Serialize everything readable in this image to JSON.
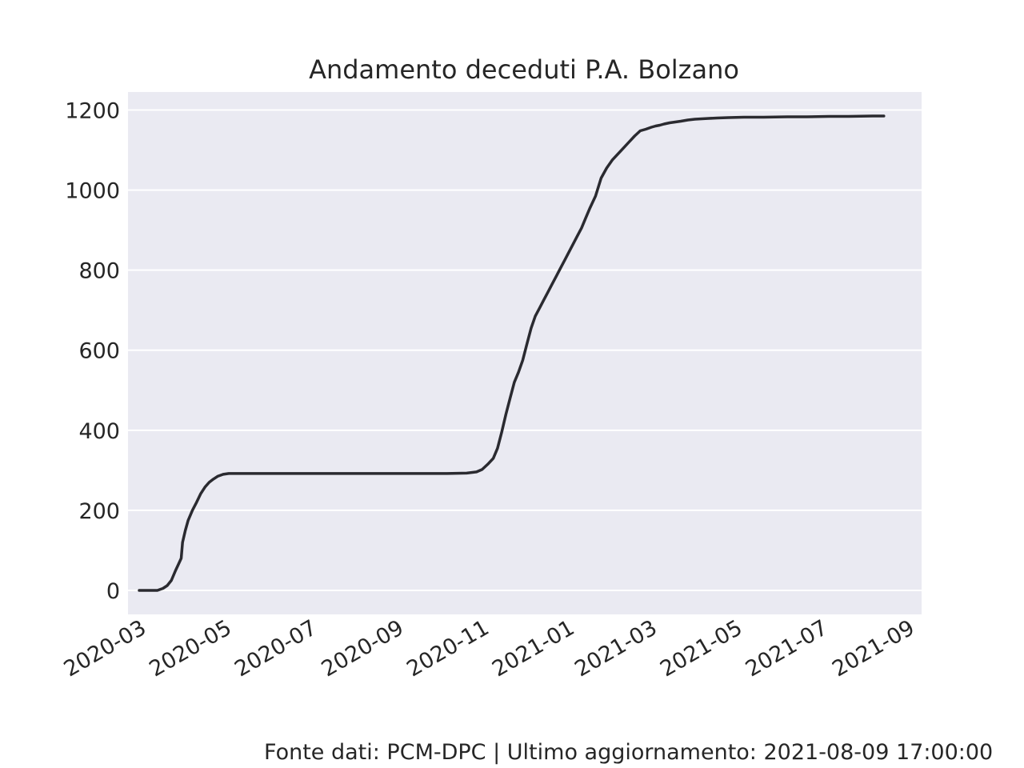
{
  "chart_data": {
    "type": "line",
    "title": "Andamento deceduti P.A. Bolzano",
    "xlabel": "",
    "ylabel": "",
    "xlim": [
      "2020-02-16",
      "2021-09-05"
    ],
    "ylim": [
      -60,
      1245
    ],
    "grid": true,
    "legend": "none",
    "colors": {
      "plot_bg": "#eaeaf2",
      "grid": "#ffffff",
      "line": "#2a2a30",
      "text": "#262626"
    },
    "x_ticks": [
      "2020-03",
      "2020-05",
      "2020-07",
      "2020-09",
      "2020-11",
      "2021-01",
      "2021-03",
      "2021-05",
      "2021-07",
      "2021-09"
    ],
    "x_tick_dates": [
      "2020-03-01",
      "2020-05-01",
      "2020-07-01",
      "2020-09-01",
      "2020-11-01",
      "2021-01-01",
      "2021-03-01",
      "2021-05-01",
      "2021-07-01",
      "2021-09-01"
    ],
    "y_ticks": [
      0,
      200,
      400,
      600,
      800,
      1000,
      1200
    ],
    "series": [
      {
        "x": [
          "2020-02-24",
          "2020-03-08",
          "2020-03-12",
          "2020-03-15",
          "2020-03-18",
          "2020-03-21",
          "2020-03-23",
          "2020-03-25",
          "2020-03-26",
          "2020-03-28",
          "2020-03-30",
          "2020-04-02",
          "2020-04-05",
          "2020-04-08",
          "2020-04-11",
          "2020-04-14",
          "2020-04-17",
          "2020-04-20",
          "2020-04-24",
          "2020-04-28",
          "2020-05-02",
          "2020-05-06",
          "2020-05-12",
          "2020-05-20",
          "2020-06-01",
          "2020-06-15",
          "2020-07-01",
          "2020-08-01",
          "2020-09-01",
          "2020-10-01",
          "2020-10-15",
          "2020-10-22",
          "2020-10-26",
          "2020-10-30",
          "2020-11-03",
          "2020-11-06",
          "2020-11-09",
          "2020-11-12",
          "2020-11-15",
          "2020-11-18",
          "2020-11-21",
          "2020-11-24",
          "2020-11-27",
          "2020-11-30",
          "2020-12-03",
          "2020-12-06",
          "2020-12-09",
          "2020-12-12",
          "2020-12-15",
          "2020-12-18",
          "2020-12-21",
          "2020-12-24",
          "2020-12-27",
          "2020-12-30",
          "2021-01-02",
          "2021-01-05",
          "2021-01-08",
          "2021-01-11",
          "2021-01-15",
          "2021-01-19",
          "2021-01-23",
          "2021-01-27",
          "2021-01-31",
          "2021-02-04",
          "2021-02-08",
          "2021-02-12",
          "2021-02-16",
          "2021-02-20",
          "2021-02-24",
          "2021-02-27",
          "2021-03-02",
          "2021-03-05",
          "2021-03-09",
          "2021-03-13",
          "2021-03-17",
          "2021-03-22",
          "2021-03-27",
          "2021-04-01",
          "2021-04-06",
          "2021-04-12",
          "2021-04-20",
          "2021-05-01",
          "2021-05-15",
          "2021-06-01",
          "2021-06-15",
          "2021-07-01",
          "2021-07-15",
          "2021-08-01",
          "2021-08-09"
        ],
        "y": [
          0,
          0,
          5,
          12,
          25,
          50,
          65,
          80,
          120,
          150,
          175,
          200,
          220,
          242,
          258,
          270,
          278,
          285,
          290,
          292,
          292,
          292,
          292,
          292,
          292,
          292,
          292,
          292,
          292,
          292,
          293,
          296,
          302,
          315,
          330,
          355,
          395,
          440,
          480,
          520,
          545,
          575,
          615,
          655,
          685,
          705,
          725,
          745,
          765,
          785,
          805,
          825,
          845,
          865,
          885,
          905,
          930,
          955,
          985,
          1030,
          1055,
          1075,
          1090,
          1105,
          1120,
          1135,
          1148,
          1152,
          1157,
          1160,
          1162,
          1165,
          1168,
          1170,
          1172,
          1175,
          1177,
          1178,
          1179,
          1180,
          1181,
          1182,
          1182,
          1183,
          1183,
          1184,
          1184,
          1185,
          1185
        ]
      }
    ]
  },
  "footer": "Fonte dati: PCM-DPC | Ultimo aggiornamento: 2021-08-09 17:00:00"
}
